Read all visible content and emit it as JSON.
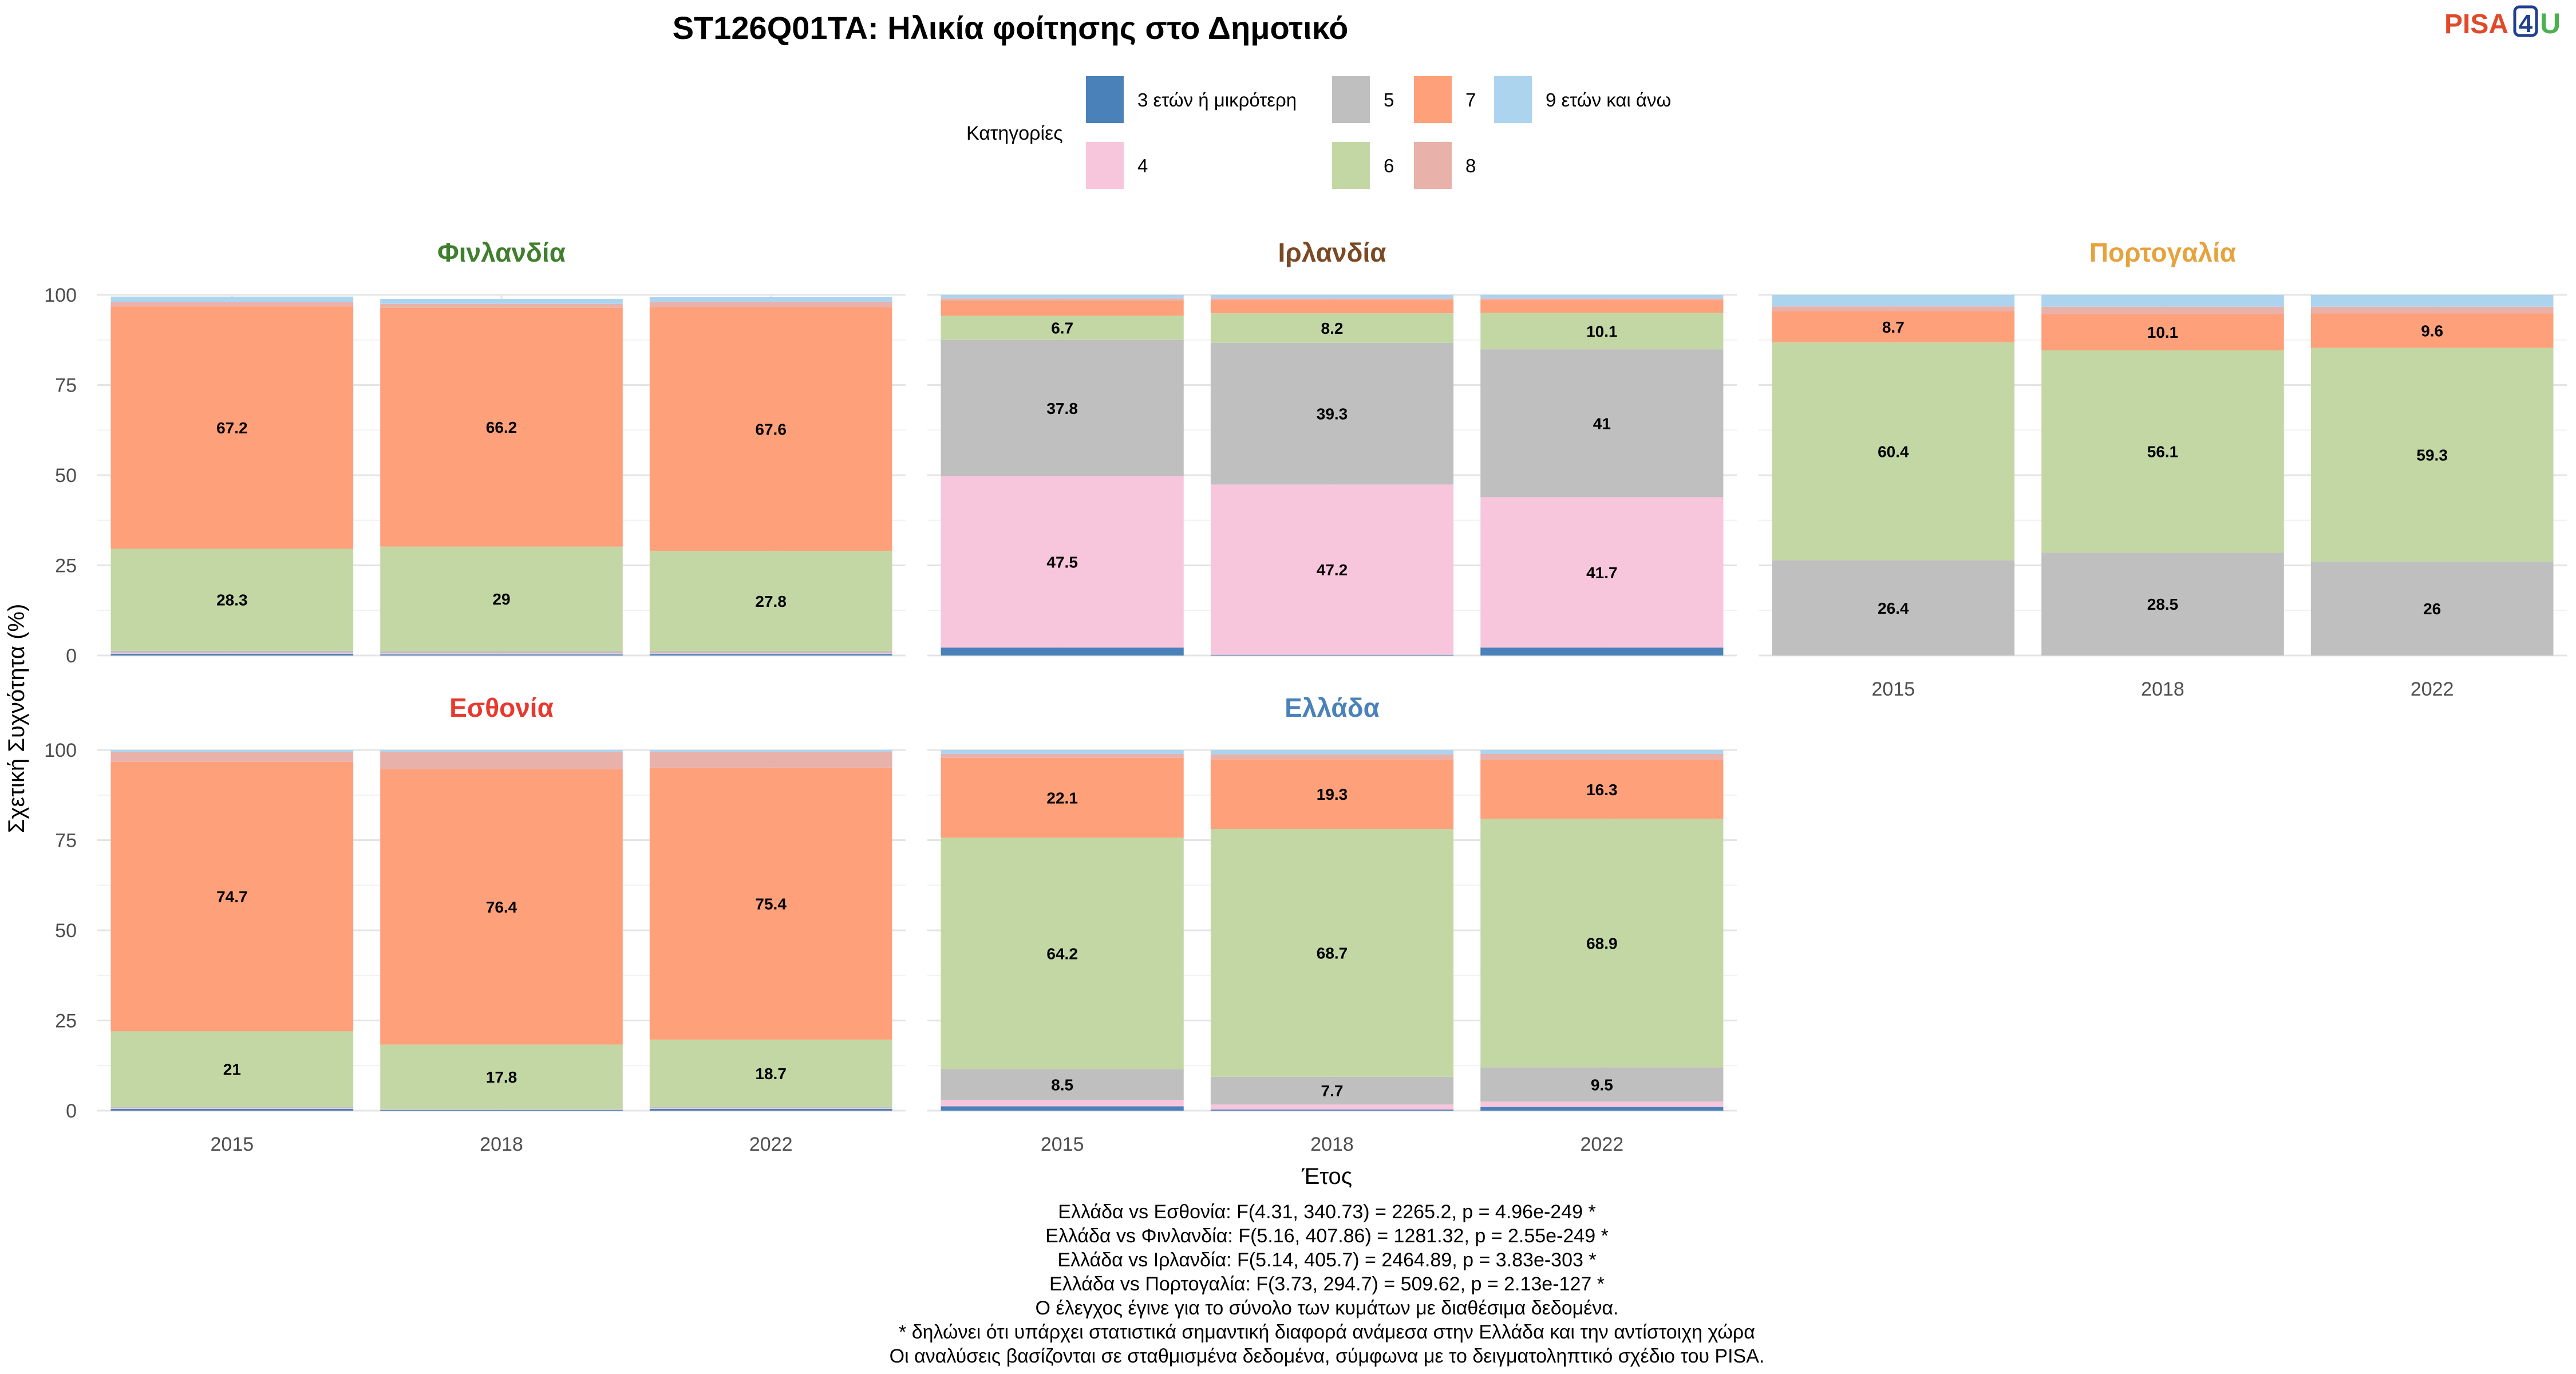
{
  "title": "ST126Q01TA: Ηλικία φοίτησης στο Δημοτικό",
  "logo": {
    "part1": "PISA",
    "part2": "4",
    "part3": "U",
    "color1": "#e04a2b",
    "color2": "#1f3f8f",
    "color3": "#4caf50"
  },
  "legend": {
    "title": "Κατηγορίες",
    "items": [
      {
        "key": "c3",
        "label": "3 ετών ή μικρότερη",
        "color": "#4a81b9"
      },
      {
        "key": "c4",
        "label": "4",
        "color": "#f8c6dc"
      },
      {
        "key": "c5",
        "label": "5",
        "color": "#bfbfbf"
      },
      {
        "key": "c6",
        "label": "6",
        "color": "#c3d7a5"
      },
      {
        "key": "c7",
        "label": "7",
        "color": "#fea07a"
      },
      {
        "key": "c8",
        "label": "8",
        "color": "#e8b2aa"
      },
      {
        "key": "c9",
        "label": "9 ετών και άνω",
        "color": "#add4ef"
      }
    ]
  },
  "axes": {
    "ylabel": "Σχετική Συχνότητα (%)",
    "xlabel": "Έτος",
    "yticks": [
      "0",
      "25",
      "50",
      "75",
      "100"
    ]
  },
  "chart_data": {
    "type": "bar",
    "stacked": true,
    "ylim": [
      0,
      100
    ],
    "categories": [
      "2015",
      "2018",
      "2022"
    ],
    "series_order": [
      "c3",
      "c4",
      "c5",
      "c6",
      "c7",
      "c8",
      "c9"
    ],
    "panels": [
      {
        "name": "Φινλανδία",
        "color": "#3f7f2e",
        "bars": [
          {
            "year": "2015",
            "values": {
              "c3": 0.5,
              "c4": 0.3,
              "c5": 0.5,
              "c6": 28.3,
              "c7": 67.2,
              "c8": 1.2,
              "c9": 1.5
            }
          },
          {
            "year": "2018",
            "values": {
              "c3": 0.3,
              "c4": 0.3,
              "c5": 0.6,
              "c6": 29,
              "c7": 66.2,
              "c8": 1.1,
              "c9": 1.4
            }
          },
          {
            "year": "2022",
            "values": {
              "c3": 0.4,
              "c4": 0.3,
              "c5": 0.5,
              "c6": 27.8,
              "c7": 67.6,
              "c8": 1.4,
              "c9": 1.4
            }
          }
        ]
      },
      {
        "name": "Ιρλανδία",
        "color": "#7a4a24",
        "bars": [
          {
            "year": "2015",
            "values": {
              "c3": 2.2,
              "c4": 47.5,
              "c5": 37.8,
              "c6": 6.7,
              "c7": 4.2,
              "c8": 0.6,
              "c9": 1.0
            }
          },
          {
            "year": "2018",
            "values": {
              "c3": 0.2,
              "c4": 47.2,
              "c5": 39.3,
              "c6": 8.2,
              "c7": 3.6,
              "c8": 0.5,
              "c9": 1.0
            }
          },
          {
            "year": "2022",
            "values": {
              "c3": 2.2,
              "c4": 41.7,
              "c5": 41,
              "c6": 10.1,
              "c7": 3.5,
              "c8": 0.5,
              "c9": 1.0
            }
          }
        ]
      },
      {
        "name": "Πορτογαλία",
        "color": "#e6a23c",
        "bars": [
          {
            "year": "2015",
            "values": {
              "c3": 0,
              "c4": 0,
              "c5": 26.4,
              "c6": 60.4,
              "c7": 8.7,
              "c8": 1.3,
              "c9": 3.2
            }
          },
          {
            "year": "2018",
            "values": {
              "c3": 0,
              "c4": 0,
              "c5": 28.5,
              "c6": 56.1,
              "c7": 10.1,
              "c8": 2.0,
              "c9": 3.3
            }
          },
          {
            "year": "2022",
            "values": {
              "c3": 0,
              "c4": 0,
              "c5": 26,
              "c6": 59.3,
              "c7": 9.6,
              "c8": 1.8,
              "c9": 3.3
            }
          }
        ]
      },
      {
        "name": "Εσθονία",
        "color": "#e8392f",
        "bars": [
          {
            "year": "2015",
            "values": {
              "c3": 0.5,
              "c4": 0.2,
              "c5": 0.3,
              "c6": 21,
              "c7": 74.7,
              "c8": 2.7,
              "c9": 0.6
            }
          },
          {
            "year": "2018",
            "values": {
              "c3": 0.2,
              "c4": 0.1,
              "c5": 0.2,
              "c6": 17.8,
              "c7": 76.4,
              "c8": 4.7,
              "c9": 0.6
            }
          },
          {
            "year": "2022",
            "values": {
              "c3": 0.5,
              "c4": 0.2,
              "c5": 0.3,
              "c6": 18.7,
              "c7": 75.4,
              "c8": 4.3,
              "c9": 0.6
            }
          }
        ]
      },
      {
        "name": "Ελλάδα",
        "color": "#4a81b9",
        "bars": [
          {
            "year": "2015",
            "values": {
              "c3": 1.2,
              "c4": 1.8,
              "c5": 8.5,
              "c6": 64.2,
              "c7": 22.1,
              "c8": 1.1,
              "c9": 1.1
            }
          },
          {
            "year": "2018",
            "values": {
              "c3": 0.3,
              "c4": 1.4,
              "c5": 7.7,
              "c6": 68.7,
              "c7": 19.3,
              "c8": 1.4,
              "c9": 1.2
            }
          },
          {
            "year": "2022",
            "values": {
              "c3": 1.0,
              "c4": 1.5,
              "c5": 9.5,
              "c6": 68.9,
              "c7": 16.3,
              "c8": 1.7,
              "c9": 1.1
            }
          }
        ]
      }
    ],
    "labels": [
      [
        {
          "key": "c6",
          "text": [
            "28.3",
            "29",
            "27.8"
          ]
        },
        {
          "key": "c7",
          "text": [
            "67.2",
            "66.2",
            "67.6"
          ]
        }
      ],
      [
        {
          "key": "c4",
          "text": [
            "47.5",
            "47.2",
            "41.7"
          ]
        },
        {
          "key": "c5",
          "text": [
            "37.8",
            "39.3",
            "41"
          ]
        },
        {
          "key": "c6",
          "text": [
            "6.7",
            "8.2",
            "10.1"
          ]
        }
      ],
      [
        {
          "key": "c5",
          "text": [
            "26.4",
            "28.5",
            "26"
          ]
        },
        {
          "key": "c6",
          "text": [
            "60.4",
            "56.1",
            "59.3"
          ]
        },
        {
          "key": "c7",
          "text": [
            "8.7",
            "10.1",
            "9.6"
          ]
        }
      ],
      [
        {
          "key": "c6",
          "text": [
            "21",
            "17.8",
            "18.7"
          ]
        },
        {
          "key": "c7",
          "text": [
            "74.7",
            "76.4",
            "75.4"
          ]
        }
      ],
      [
        {
          "key": "c5",
          "text": [
            "8.5",
            "7.7",
            "9.5"
          ]
        },
        {
          "key": "c6",
          "text": [
            "64.2",
            "68.7",
            "68.9"
          ]
        },
        {
          "key": "c7",
          "text": [
            "22.1",
            "19.3",
            "16.3"
          ]
        }
      ]
    ]
  },
  "footnotes": [
    "Ελλάδα vs Εσθονία: F(4.31, 340.73) = 2265.2, p = 4.96e-249 *",
    "Ελλάδα vs Φινλανδία: F(5.16, 407.86) = 1281.32, p = 2.55e-249 *",
    "Ελλάδα vs Ιρλανδία: F(5.14, 405.7) = 2464.89, p = 3.83e-303 *",
    "Ελλάδα vs Πορτογαλία: F(3.73, 294.7) = 509.62, p = 2.13e-127 *",
    "Ο έλεγχος έγινε για το σύνολο των κυμάτων με διαθέσιμα δεδομένα.",
    "* δηλώνει ότι υπάρχει στατιστικά σημαντική διαφορά ανάμεσα στην Ελλάδα και την αντίστοιχη χώρα",
    "Οι αναλύσεις βασίζονται σε σταθμισμένα δεδομένα, σύμφωνα με το δειγματοληπτικό σχέδιο του PISA."
  ]
}
